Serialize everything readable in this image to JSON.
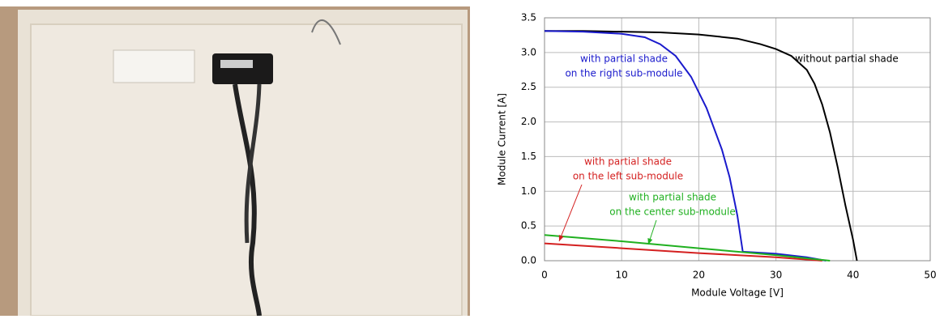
{
  "chart_data": {
    "type": "line",
    "x_label": "Module Voltage [V]",
    "y_label": "Module Current [A]",
    "xlim": [
      0,
      50
    ],
    "xticks": [
      0,
      10,
      20,
      30,
      40,
      50
    ],
    "ylim": [
      0,
      3.5
    ],
    "yticks": [
      {
        "value": 0,
        "label": "0.0"
      },
      0.5,
      {
        "value": 1,
        "label": "1.0"
      },
      1.5,
      {
        "value": 2,
        "label": "2.0"
      },
      2.5,
      {
        "value": 3,
        "label": "3.0"
      },
      3.5
    ],
    "grid": true,
    "series": [
      {
        "color": "#000000",
        "x": [
          0,
          5,
          10,
          15,
          20,
          25,
          28,
          30,
          32,
          34,
          35,
          36,
          37,
          38,
          39,
          40,
          40.5
        ],
        "values": [
          3.31,
          3.31,
          3.3,
          3.29,
          3.26,
          3.2,
          3.12,
          3.05,
          2.95,
          2.75,
          2.55,
          2.25,
          1.85,
          1.35,
          0.8,
          0.3,
          0.0
        ]
      },
      {
        "color": "#1a1acc",
        "x": [
          0,
          5,
          10,
          13,
          15,
          17,
          19,
          21,
          23,
          24,
          25,
          25.7,
          30,
          34,
          36.5
        ],
        "values": [
          3.31,
          3.3,
          3.27,
          3.22,
          3.12,
          2.95,
          2.65,
          2.2,
          1.6,
          1.2,
          0.65,
          0.13,
          0.1,
          0.05,
          0.0
        ]
      },
      {
        "color": "#d42020",
        "x": [
          0,
          10,
          20,
          30,
          36
        ],
        "values": [
          0.25,
          0.18,
          0.11,
          0.05,
          0.0
        ]
      },
      {
        "color": "#20b020",
        "x": [
          0,
          10,
          20,
          30,
          37
        ],
        "values": [
          0.37,
          0.28,
          0.18,
          0.08,
          0.0
        ]
      }
    ],
    "annotations": [
      {
        "lines": [
          "without partial shade"
        ],
        "color": "#000000"
      },
      {
        "lines": [
          "with partial shade",
          "on the right sub-module"
        ],
        "color": "#1a1acc"
      },
      {
        "lines": [
          "with partial shade",
          "on the left sub-module"
        ],
        "color": "#d42020"
      },
      {
        "lines": [
          "with partial shade",
          "on the center sub-module"
        ],
        "color": "#20b020"
      }
    ]
  }
}
